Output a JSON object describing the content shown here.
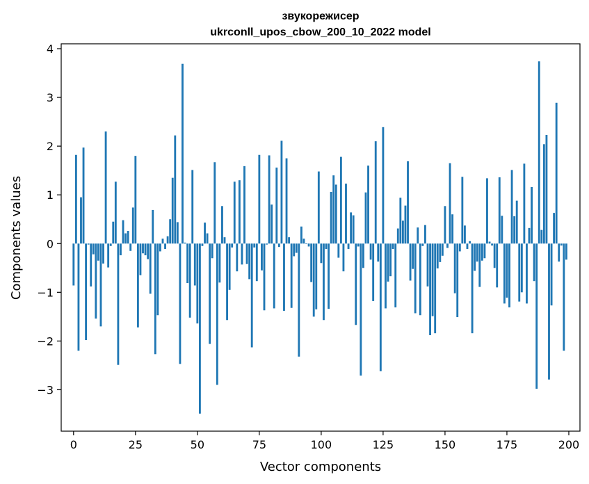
{
  "chart_data": {
    "type": "bar",
    "title_line1": "звукорежисер",
    "title_line2": "ukrconll_upos_cbow_200_10_2022 model",
    "xlabel": "Vector components",
    "ylabel": "Components values",
    "xlim": [
      -5,
      204.5
    ],
    "ylim": [
      -3.85,
      4.1
    ],
    "xticks": [
      0,
      25,
      50,
      75,
      100,
      125,
      150,
      175,
      200
    ],
    "yticks": [
      -3,
      -2,
      -1,
      0,
      1,
      2,
      3,
      4
    ],
    "bar_color": "#1f77b4",
    "grid": false,
    "values": [
      -0.86,
      1.82,
      -2.2,
      0.95,
      1.97,
      -1.98,
      -0.02,
      -0.88,
      -0.22,
      -1.54,
      -0.35,
      -1.7,
      -0.41,
      2.3,
      -0.49,
      -0.05,
      0.45,
      1.27,
      -2.49,
      -0.24,
      0.48,
      0.21,
      0.26,
      -0.15,
      0.74,
      1.8,
      -1.72,
      -0.65,
      -0.2,
      -0.24,
      -0.32,
      -1.03,
      0.69,
      -2.27,
      -1.47,
      -0.16,
      0.1,
      -0.11,
      0.15,
      0.5,
      1.35,
      2.22,
      0.44,
      -2.47,
      3.69,
      0.02,
      -0.81,
      -1.52,
      1.51,
      -0.86,
      -1.64,
      -3.49,
      -0.05,
      0.43,
      0.21,
      -2.06,
      -0.3,
      1.67,
      -2.9,
      -0.8,
      0.77,
      0.13,
      -1.57,
      -0.95,
      -0.08,
      1.27,
      -0.57,
      1.3,
      -0.43,
      1.59,
      -0.42,
      -0.73,
      -2.13,
      -0.08,
      -0.77,
      1.82,
      -0.55,
      -1.37,
      -0.02,
      1.81,
      0.8,
      -1.33,
      1.56,
      -0.07,
      2.11,
      -1.38,
      1.75,
      0.13,
      -1.32,
      -0.26,
      -0.19,
      -2.32,
      0.35,
      0.1,
      -0.01,
      -0.06,
      -0.79,
      -1.5,
      -1.35,
      1.48,
      -0.4,
      -1.57,
      -0.11,
      -1.34,
      1.06,
      1.4,
      1.21,
      -0.29,
      1.78,
      -0.57,
      1.23,
      -0.11,
      0.64,
      0.58,
      -1.67,
      -0.06,
      -2.71,
      -0.5,
      1.05,
      1.6,
      -0.33,
      -1.18,
      2.1,
      -0.37,
      -2.62,
      2.39,
      -1.33,
      -0.78,
      -0.67,
      -0.11,
      -1.31,
      0.31,
      0.94,
      0.47,
      0.78,
      1.69,
      -0.76,
      -0.52,
      -1.43,
      0.33,
      -1.47,
      -0.05,
      0.38,
      -0.88,
      -1.88,
      -1.49,
      -1.84,
      -0.51,
      -0.38,
      -0.25,
      0.77,
      -0.09,
      1.65,
      0.6,
      -1.02,
      -1.51,
      -0.16,
      1.37,
      0.37,
      -0.11,
      0.05,
      -1.84,
      -0.56,
      -0.37,
      -0.89,
      -0.35,
      -0.3,
      1.34,
      0.04,
      -0.04,
      -0.5,
      -0.9,
      1.36,
      0.57,
      -1.23,
      -1.11,
      -1.31,
      1.51,
      0.56,
      0.88,
      -1.19,
      -1.0,
      1.64,
      -1.23,
      0.32,
      1.16,
      -0.77,
      -2.98,
      3.74,
      0.28,
      2.04,
      2.23,
      -2.79,
      -1.27,
      0.63,
      2.89,
      -0.37,
      -0.04,
      -2.2,
      -0.33
    ]
  }
}
